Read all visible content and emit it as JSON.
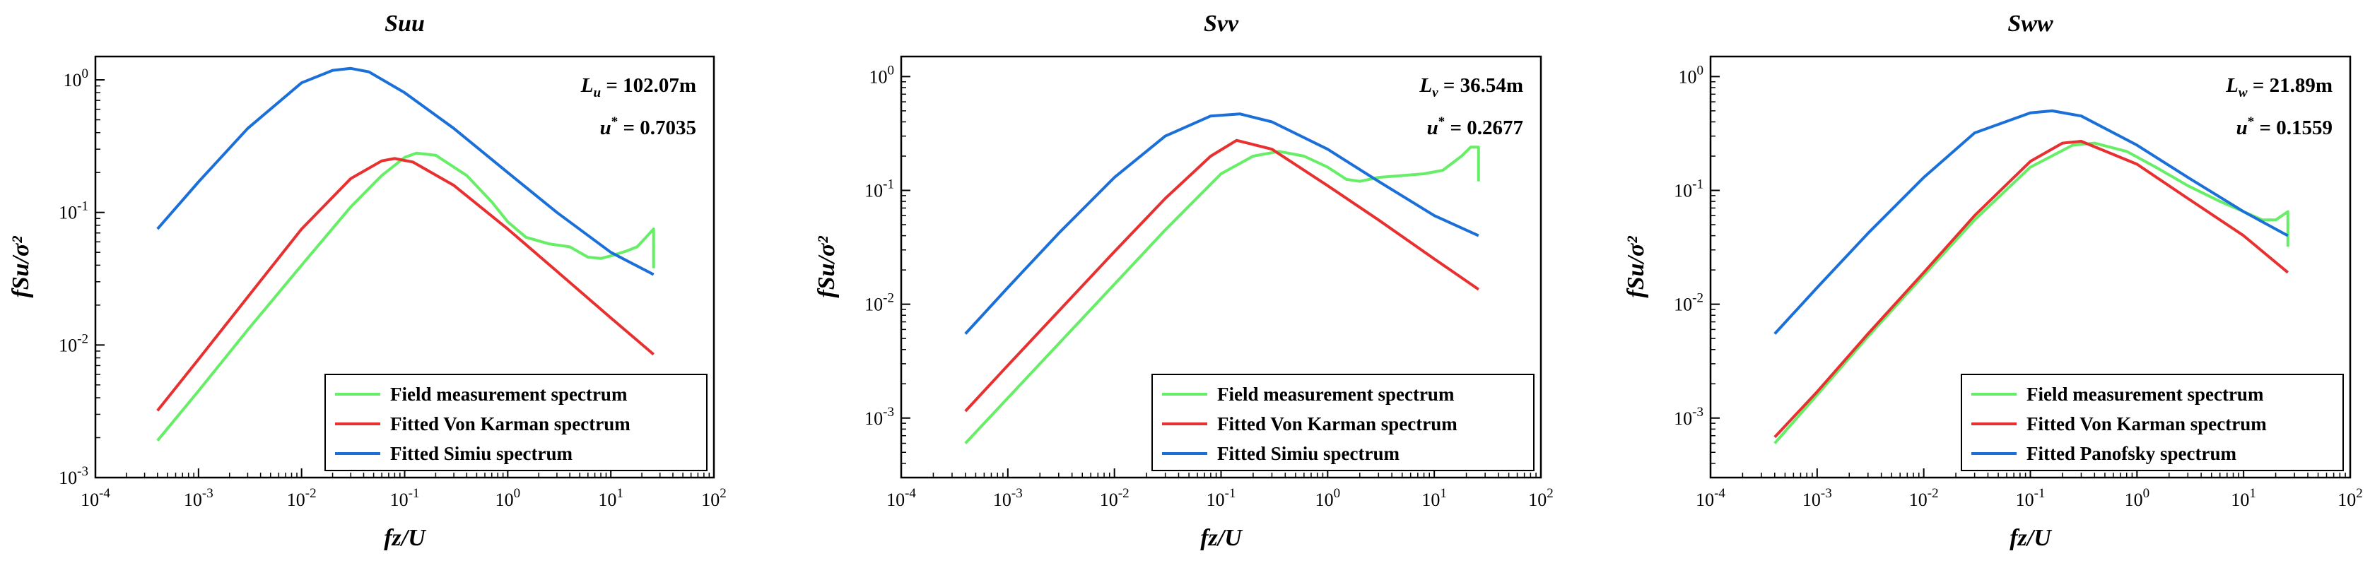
{
  "chart_data": [
    {
      "type": "line",
      "title": "Suu",
      "xlabel": "fz/U",
      "ylabel": "fSu/σ²",
      "xscale": "log",
      "yscale": "log",
      "xlim": [
        0.0001,
        100
      ],
      "ylim": [
        0.001,
        1.5
      ],
      "xticks": [
        {
          "base": "10",
          "exp": "-4"
        },
        {
          "base": "10",
          "exp": "-3"
        },
        {
          "base": "10",
          "exp": "-2"
        },
        {
          "base": "10",
          "exp": "-1"
        },
        {
          "base": "10",
          "exp": "0"
        },
        {
          "base": "10",
          "exp": "1"
        },
        {
          "base": "10",
          "exp": "2"
        }
      ],
      "yticks": [
        {
          "base": "10",
          "exp": "-3"
        },
        {
          "base": "10",
          "exp": "-2"
        },
        {
          "base": "10",
          "exp": "-1"
        },
        {
          "base": "10",
          "exp": "0"
        }
      ],
      "annotations": {
        "L_symbol": "L",
        "L_subscript": "u",
        "L_value": " = 102.07m",
        "u_symbol": "u",
        "u_superscript": "*",
        "u_value": " = 0.7035"
      },
      "legend_position": "bottom-right",
      "series": [
        {
          "name": "Field measurement spectrum",
          "color": "#66ee66",
          "x": [
            0.0004,
            0.001,
            0.003,
            0.01,
            0.03,
            0.06,
            0.1,
            0.13,
            0.2,
            0.4,
            0.7,
            1.0,
            1.5,
            2.5,
            4,
            6,
            8,
            10,
            14,
            18,
            22,
            26,
            26
          ],
          "y": [
            0.0019,
            0.0045,
            0.013,
            0.04,
            0.11,
            0.19,
            0.26,
            0.28,
            0.27,
            0.19,
            0.12,
            0.085,
            0.065,
            0.058,
            0.055,
            0.046,
            0.045,
            0.047,
            0.051,
            0.055,
            0.065,
            0.075,
            0.038
          ]
        },
        {
          "name": "Fitted Von Karman spectrum",
          "color": "#e83030",
          "x": [
            0.0004,
            0.001,
            0.003,
            0.01,
            0.03,
            0.06,
            0.08,
            0.12,
            0.3,
            1,
            3,
            10,
            26
          ],
          "y": [
            0.0032,
            0.0078,
            0.023,
            0.075,
            0.18,
            0.245,
            0.255,
            0.24,
            0.16,
            0.075,
            0.036,
            0.016,
            0.0085
          ]
        },
        {
          "name": "Fitted Simiu spectrum",
          "color": "#1a6fd8",
          "x": [
            0.0004,
            0.001,
            0.003,
            0.01,
            0.02,
            0.03,
            0.045,
            0.1,
            0.3,
            1,
            3,
            10,
            26
          ],
          "y": [
            0.075,
            0.17,
            0.43,
            0.95,
            1.18,
            1.22,
            1.15,
            0.8,
            0.43,
            0.2,
            0.1,
            0.05,
            0.034
          ]
        }
      ]
    },
    {
      "type": "line",
      "title": "Svv",
      "xlabel": "fz/U",
      "ylabel": "fSu/σ²",
      "xscale": "log",
      "yscale": "log",
      "xlim": [
        0.0001,
        100
      ],
      "ylim": [
        0.0003,
        1.5
      ],
      "xticks": [
        {
          "base": "10",
          "exp": "-4"
        },
        {
          "base": "10",
          "exp": "-3"
        },
        {
          "base": "10",
          "exp": "-2"
        },
        {
          "base": "10",
          "exp": "-1"
        },
        {
          "base": "10",
          "exp": "0"
        },
        {
          "base": "10",
          "exp": "1"
        },
        {
          "base": "10",
          "exp": "2"
        }
      ],
      "yticks": [
        {
          "base": "10",
          "exp": "-3"
        },
        {
          "base": "10",
          "exp": "-2"
        },
        {
          "base": "10",
          "exp": "-1"
        },
        {
          "base": "10",
          "exp": "0"
        }
      ],
      "annotations": {
        "L_symbol": "L",
        "L_subscript": "v",
        "L_value": " = 36.54m",
        "u_symbol": "u",
        "u_superscript": "*",
        "u_value": " = 0.2677"
      },
      "legend_position": "bottom-right",
      "series": [
        {
          "name": "Field measurement spectrum",
          "color": "#66ee66",
          "x": [
            0.0004,
            0.001,
            0.003,
            0.01,
            0.03,
            0.1,
            0.2,
            0.35,
            0.6,
            1.0,
            1.5,
            2.0,
            3,
            5,
            8,
            12,
            18,
            22,
            26,
            26
          ],
          "y": [
            0.0006,
            0.0015,
            0.0045,
            0.015,
            0.045,
            0.14,
            0.2,
            0.22,
            0.2,
            0.16,
            0.125,
            0.12,
            0.13,
            0.135,
            0.14,
            0.15,
            0.2,
            0.24,
            0.24,
            0.12
          ]
        },
        {
          "name": "Fitted Von Karman spectrum",
          "color": "#e83030",
          "x": [
            0.0004,
            0.001,
            0.003,
            0.01,
            0.03,
            0.08,
            0.14,
            0.3,
            1,
            3,
            10,
            26
          ],
          "y": [
            0.00115,
            0.0029,
            0.0087,
            0.029,
            0.085,
            0.2,
            0.275,
            0.23,
            0.11,
            0.055,
            0.025,
            0.0135
          ]
        },
        {
          "name": "Fitted Simiu spectrum",
          "color": "#1a6fd8",
          "x": [
            0.0004,
            0.001,
            0.003,
            0.01,
            0.03,
            0.08,
            0.15,
            0.3,
            1,
            3,
            10,
            26
          ],
          "y": [
            0.0055,
            0.014,
            0.042,
            0.13,
            0.3,
            0.45,
            0.47,
            0.4,
            0.23,
            0.12,
            0.06,
            0.04
          ]
        }
      ]
    },
    {
      "type": "line",
      "title": "Sww",
      "xlabel": "fz/U",
      "ylabel": "fSu/σ²",
      "xscale": "log",
      "yscale": "log",
      "xlim": [
        0.0001,
        100
      ],
      "ylim": [
        0.0003,
        1.5
      ],
      "xticks": [
        {
          "base": "10",
          "exp": "-4"
        },
        {
          "base": "10",
          "exp": "-3"
        },
        {
          "base": "10",
          "exp": "-2"
        },
        {
          "base": "10",
          "exp": "-1"
        },
        {
          "base": "10",
          "exp": "0"
        },
        {
          "base": "10",
          "exp": "1"
        },
        {
          "base": "10",
          "exp": "2"
        }
      ],
      "yticks": [
        {
          "base": "10",
          "exp": "-3"
        },
        {
          "base": "10",
          "exp": "-2"
        },
        {
          "base": "10",
          "exp": "-1"
        },
        {
          "base": "10",
          "exp": "0"
        }
      ],
      "annotations": {
        "L_symbol": "L",
        "L_subscript": "w",
        "L_value": " = 21.89m",
        "u_symbol": "u",
        "u_superscript": "*",
        "u_value": " = 0.1559"
      },
      "legend_position": "bottom-right",
      "series": [
        {
          "name": "Field measurement spectrum",
          "color": "#66ee66",
          "x": [
            0.0004,
            0.001,
            0.003,
            0.01,
            0.03,
            0.1,
            0.25,
            0.4,
            0.8,
            1.5,
            3,
            6,
            10,
            15,
            20,
            26,
            26
          ],
          "y": [
            0.0006,
            0.0016,
            0.0052,
            0.018,
            0.055,
            0.16,
            0.25,
            0.26,
            0.22,
            0.16,
            0.11,
            0.08,
            0.065,
            0.055,
            0.055,
            0.065,
            0.032
          ]
        },
        {
          "name": "Fitted Von Karman spectrum",
          "color": "#e83030",
          "x": [
            0.0004,
            0.001,
            0.003,
            0.01,
            0.03,
            0.1,
            0.2,
            0.3,
            1,
            3,
            10,
            26
          ],
          "y": [
            0.00068,
            0.0017,
            0.0055,
            0.019,
            0.06,
            0.18,
            0.26,
            0.27,
            0.17,
            0.085,
            0.04,
            0.019
          ]
        },
        {
          "name": "Fitted Panofsky spectrum",
          "color": "#1a6fd8",
          "x": [
            0.0004,
            0.001,
            0.003,
            0.01,
            0.03,
            0.1,
            0.16,
            0.3,
            1,
            3,
            10,
            26
          ],
          "y": [
            0.0055,
            0.014,
            0.042,
            0.13,
            0.32,
            0.48,
            0.5,
            0.45,
            0.25,
            0.13,
            0.065,
            0.04
          ]
        }
      ]
    }
  ]
}
